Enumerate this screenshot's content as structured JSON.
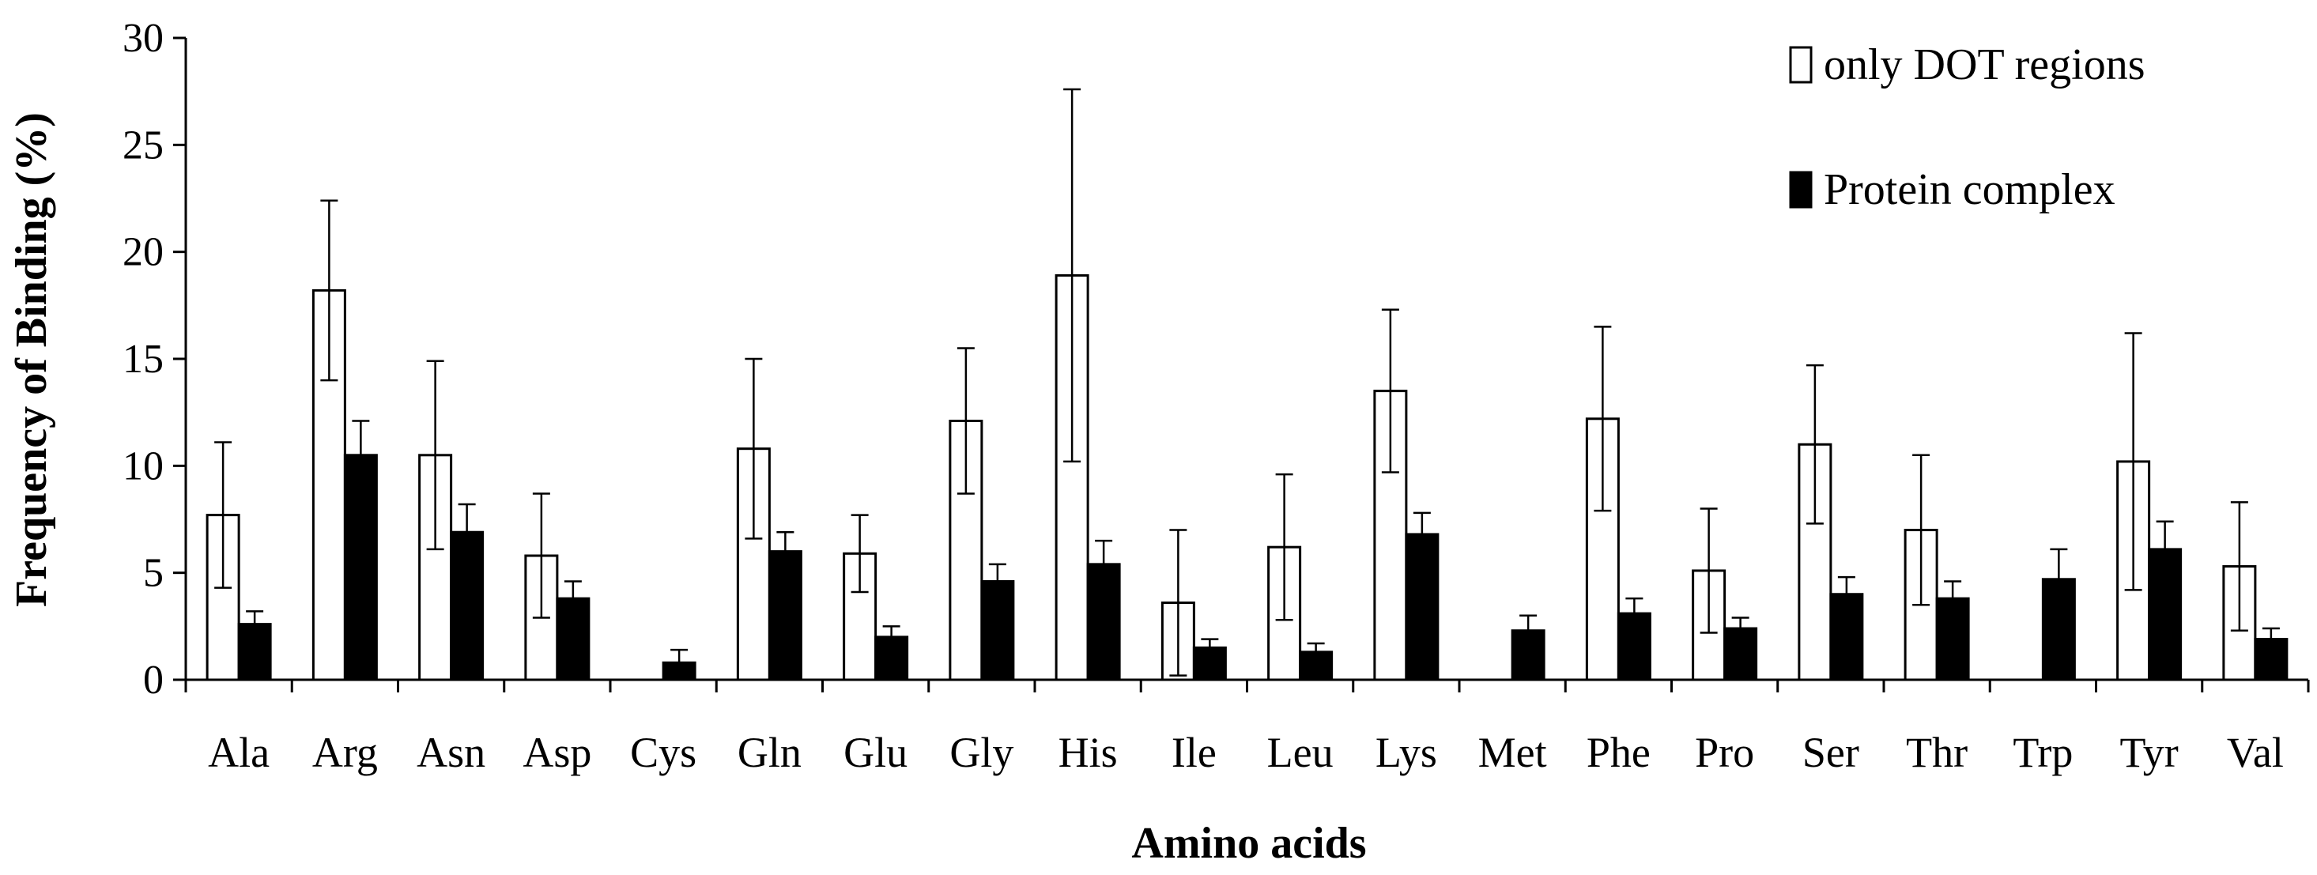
{
  "chart_data": {
    "type": "bar",
    "title": "",
    "xlabel": "Amino acids",
    "ylabel": "Frequency of Binding (%)",
    "ylim": [
      0,
      30
    ],
    "yticks": [
      0,
      5,
      10,
      15,
      20,
      25,
      30
    ],
    "grid": false,
    "legend_position": "top-right",
    "error_bars": true,
    "categories": [
      "Ala",
      "Arg",
      "Asn",
      "Asp",
      "Cys",
      "Gln",
      "Glu",
      "Gly",
      "His",
      "Ile",
      "Leu",
      "Lys",
      "Met",
      "Phe",
      "Pro",
      "Ser",
      "Thr",
      "Trp",
      "Tyr",
      "Val"
    ],
    "series": [
      {
        "name": "only DOT regions",
        "fill": "#ffffff",
        "stroke": "#000000",
        "values": [
          7.7,
          18.2,
          10.5,
          5.8,
          0,
          10.8,
          5.9,
          12.1,
          18.9,
          3.6,
          6.2,
          13.5,
          0,
          12.2,
          5.1,
          11.0,
          7.0,
          0,
          10.2,
          5.3
        ],
        "error": [
          3.4,
          4.2,
          4.4,
          2.9,
          0,
          4.2,
          1.8,
          3.4,
          8.7,
          3.4,
          3.4,
          3.8,
          0,
          4.3,
          2.9,
          3.7,
          3.5,
          0,
          6.0,
          3.0
        ]
      },
      {
        "name": "Protein complex",
        "fill": "#000000",
        "stroke": "#000000",
        "values": [
          2.6,
          10.5,
          6.9,
          3.8,
          0.8,
          6.0,
          2.0,
          4.6,
          5.4,
          1.5,
          1.3,
          6.8,
          2.3,
          3.1,
          2.4,
          4.0,
          3.8,
          4.7,
          6.1,
          1.9
        ],
        "error": [
          0.6,
          1.6,
          1.3,
          0.8,
          0.6,
          0.9,
          0.5,
          0.8,
          1.1,
          0.4,
          0.4,
          1.0,
          0.7,
          0.7,
          0.5,
          0.8,
          0.8,
          1.4,
          1.3,
          0.5
        ]
      }
    ]
  }
}
